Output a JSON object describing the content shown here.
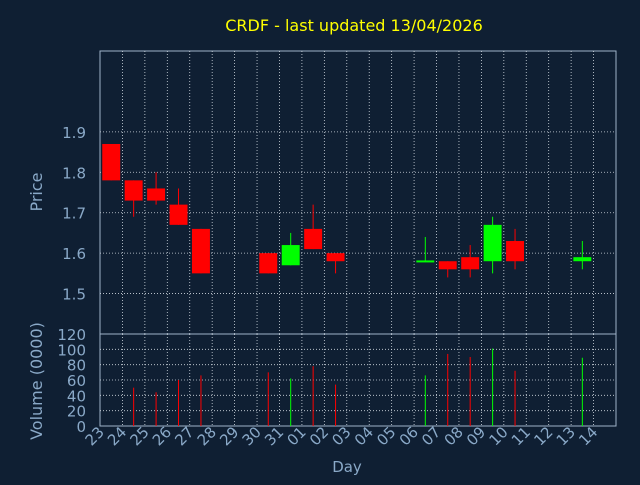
{
  "title": "CRDF - last updated 13/04/2026",
  "colors": {
    "background": "#0f1f33",
    "plot_border": "#9fb3c8",
    "grid": "#d0d8e0",
    "title": "#ffff00",
    "axis_text": "#8aa9c8",
    "up": "#00ff00",
    "down": "#ff0000"
  },
  "chart_data": [
    {
      "type": "candlestick",
      "ylabel": "Price",
      "ylim": [
        1.4,
        2.1
      ],
      "yticks": [
        "1.5",
        "1.6",
        "1.7",
        "1.8",
        "1.9"
      ],
      "ytick_values": [
        1.5,
        1.6,
        1.7,
        1.8,
        1.9
      ],
      "categories": [
        "23",
        "24",
        "25",
        "26",
        "27",
        "28",
        "29",
        "30",
        "31",
        "01",
        "02",
        "03",
        "04",
        "05",
        "06",
        "07",
        "08",
        "09",
        "10",
        "11",
        "12",
        "13",
        "14"
      ],
      "candles": [
        {
          "day": "23",
          "open": 1.87,
          "high": 1.87,
          "low": 1.78,
          "close": 1.78
        },
        {
          "day": "24",
          "open": 1.78,
          "high": 1.78,
          "low": 1.69,
          "close": 1.73
        },
        {
          "day": "25",
          "open": 1.76,
          "high": 1.8,
          "low": 1.72,
          "close": 1.73
        },
        {
          "day": "26",
          "open": 1.72,
          "high": 1.76,
          "low": 1.67,
          "close": 1.67
        },
        {
          "day": "27",
          "open": 1.66,
          "high": 1.66,
          "low": 1.55,
          "close": 1.55
        },
        {
          "day": "30",
          "open": 1.6,
          "high": 1.6,
          "low": 1.55,
          "close": 1.55
        },
        {
          "day": "31",
          "open": 1.57,
          "high": 1.65,
          "low": 1.57,
          "close": 1.62
        },
        {
          "day": "01",
          "open": 1.66,
          "high": 1.72,
          "low": 1.61,
          "close": 1.61
        },
        {
          "day": "02",
          "open": 1.6,
          "high": 1.6,
          "low": 1.55,
          "close": 1.58
        },
        {
          "day": "06",
          "open": 1.578,
          "high": 1.64,
          "low": 1.578,
          "close": 1.582
        },
        {
          "day": "07",
          "open": 1.58,
          "high": 1.58,
          "low": 1.54,
          "close": 1.56
        },
        {
          "day": "08",
          "open": 1.59,
          "high": 1.62,
          "low": 1.54,
          "close": 1.56
        },
        {
          "day": "09",
          "open": 1.58,
          "high": 1.69,
          "low": 1.55,
          "close": 1.67
        },
        {
          "day": "10",
          "open": 1.63,
          "high": 1.66,
          "low": 1.56,
          "close": 1.58
        },
        {
          "day": "13",
          "open": 1.58,
          "high": 1.63,
          "low": 1.56,
          "close": 1.59
        }
      ]
    },
    {
      "type": "bar",
      "ylabel": "Volume (0000)",
      "xlabel": "Day",
      "ylim": [
        0,
        120
      ],
      "yticks": [
        "0",
        "20",
        "40",
        "60",
        "80",
        "100",
        "120"
      ],
      "ytick_values": [
        0,
        20,
        40,
        60,
        80,
        100,
        120
      ],
      "categories": [
        "23",
        "24",
        "25",
        "26",
        "27",
        "28",
        "29",
        "30",
        "31",
        "01",
        "02",
        "03",
        "04",
        "05",
        "06",
        "07",
        "08",
        "09",
        "10",
        "11",
        "12",
        "13",
        "14"
      ],
      "bars": [
        {
          "day": "24",
          "value": 50,
          "direction": "down"
        },
        {
          "day": "25",
          "value": 44,
          "direction": "down"
        },
        {
          "day": "26",
          "value": 60,
          "direction": "down"
        },
        {
          "day": "27",
          "value": 66,
          "direction": "down"
        },
        {
          "day": "30",
          "value": 70,
          "direction": "down"
        },
        {
          "day": "31",
          "value": 62,
          "direction": "up"
        },
        {
          "day": "01",
          "value": 78,
          "direction": "down"
        },
        {
          "day": "02",
          "value": 54,
          "direction": "down"
        },
        {
          "day": "06",
          "value": 66,
          "direction": "up"
        },
        {
          "day": "07",
          "value": 94,
          "direction": "down"
        },
        {
          "day": "08",
          "value": 90,
          "direction": "down"
        },
        {
          "day": "09",
          "value": 101,
          "direction": "up"
        },
        {
          "day": "10",
          "value": 72,
          "direction": "down"
        },
        {
          "day": "13",
          "value": 89,
          "direction": "up"
        }
      ]
    }
  ]
}
